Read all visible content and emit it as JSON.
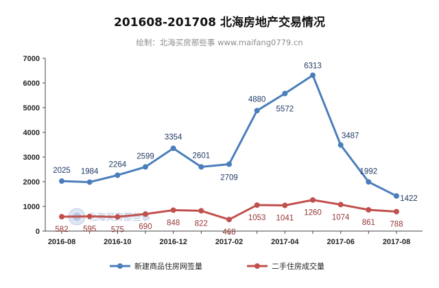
{
  "chart_data": {
    "type": "line",
    "title": "201608-201708 北海房地产交易情况",
    "subtitle": "绘制：北海买房那些事 www.maifang0779.cn",
    "watermark": "北海买房那些事",
    "x": [
      "2016-08",
      "2016-09",
      "2016-10",
      "2016-11",
      "2016-12",
      "2017-01",
      "2017-02",
      "2017-03",
      "2017-04",
      "2017-05",
      "2017-06",
      "2017-07",
      "2017-08"
    ],
    "x_tick_labels": [
      "2016-08",
      "2016-10",
      "2016-12",
      "2017-02",
      "2017-04",
      "2017-06",
      "2017-08"
    ],
    "y_ticks": [
      0,
      1000,
      2000,
      3000,
      4000,
      5000,
      6000,
      7000
    ],
    "ylim": [
      0,
      7000
    ],
    "grid": false,
    "legend_position": "bottom",
    "series": [
      {
        "name": "新建商品住房网签量",
        "color": "#4a7ebb",
        "label_color": "#1f3864",
        "values": [
          2025,
          1984,
          2264,
          2599,
          3354,
          2601,
          2709,
          4880,
          5572,
          6313,
          3487,
          1992,
          1422
        ]
      },
      {
        "name": "二手住房成交量",
        "color": "#c0504d",
        "label_color": "#943634",
        "values": [
          582,
          595,
          575,
          690,
          848,
          822,
          468,
          1053,
          1041,
          1260,
          1074,
          861,
          788
        ]
      }
    ]
  }
}
